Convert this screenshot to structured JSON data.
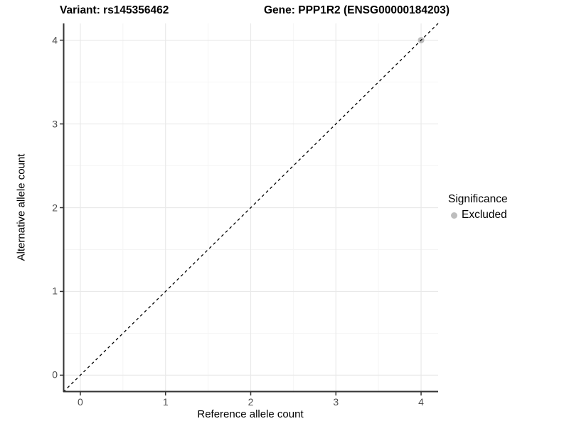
{
  "header": {
    "variant_title": "Variant: rs145356462",
    "gene_title": "Gene: PPP1R2 (ENSG00000184203)"
  },
  "legend": {
    "title": "Significance",
    "items": [
      {
        "label": "Excluded",
        "color": "#bdbdbd"
      }
    ]
  },
  "chart_data": {
    "type": "scatter",
    "title": "Variant: rs145356462   Gene: PPP1R2 (ENSG00000184203)",
    "xlabel": "Reference allele count",
    "ylabel": "Alternative allele count",
    "xlim": [
      -0.2,
      4.2
    ],
    "ylim": [
      -0.2,
      4.2
    ],
    "x_ticks": [
      0,
      1,
      2,
      3,
      4
    ],
    "y_ticks": [
      0,
      1,
      2,
      3,
      4
    ],
    "grid": true,
    "minor_grid": true,
    "legend_position": "right",
    "series": [
      {
        "name": "Excluded",
        "color": "#bdbdbd",
        "points": [
          [
            4,
            4
          ]
        ]
      }
    ],
    "reference_line": {
      "type": "identity",
      "slope": 1,
      "intercept": 0,
      "line_style": "dashed",
      "color": "#000000"
    }
  },
  "colors": {
    "background": "#ffffff",
    "grid_major": "#e9e9e9",
    "grid_minor": "#f5f5f5",
    "axis_line": "#333333",
    "tick_mark": "#333333",
    "tick_label": "#4d4d4d",
    "reference_line": "#111111"
  }
}
